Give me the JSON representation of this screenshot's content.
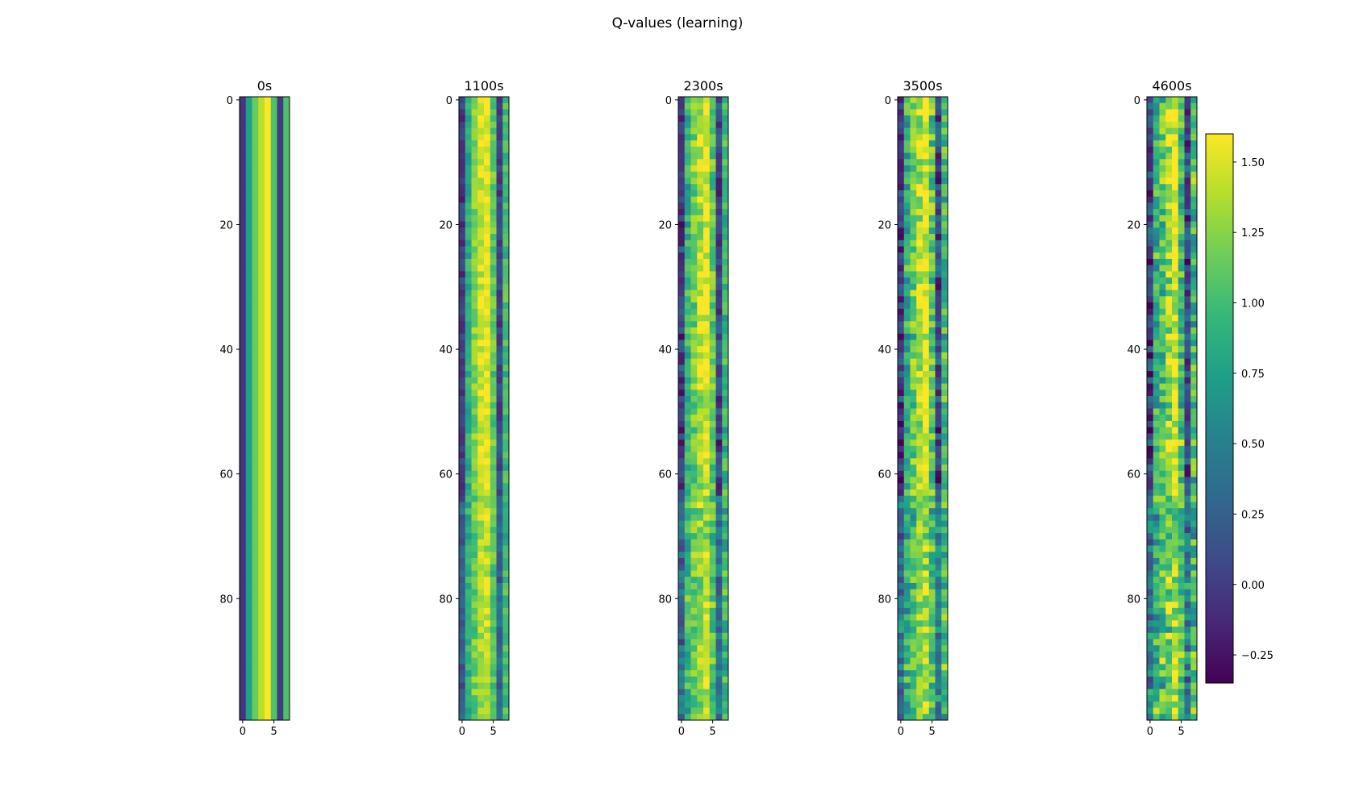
{
  "title": "Q-values (learning)",
  "chart_data": {
    "type": "heatmap",
    "title": "Q-values (learning)",
    "colormap": "viridis",
    "rows": 100,
    "cols": 8,
    "x_ticks": [
      0,
      5
    ],
    "y_ticks": [
      0,
      20,
      40,
      60,
      80
    ],
    "colorbar": {
      "vmin": -0.35,
      "vmax": 1.6,
      "ticks": [
        -0.25,
        0.0,
        0.25,
        0.5,
        0.75,
        1.0,
        1.25,
        1.5
      ],
      "tick_labels": [
        "−0.25",
        "0.00",
        "0.25",
        "0.50",
        "0.75",
        "1.00",
        "1.25",
        "1.50"
      ]
    },
    "panels": [
      {
        "label": "0s",
        "noise": 0.0,
        "lower_mix": 0.0,
        "column_values": [
          -0.05,
          0.75,
          1.15,
          1.4,
          1.6,
          1.05,
          0.0,
          1.05
        ]
      },
      {
        "label": "1100s",
        "noise": 0.08,
        "lower_mix": 0.45,
        "column_values": [
          -0.02,
          0.85,
          1.2,
          1.45,
          1.55,
          1.1,
          0.05,
          1.0
        ]
      },
      {
        "label": "2300s",
        "noise": 0.12,
        "lower_mix": 0.6,
        "column_values": [
          0.0,
          0.9,
          1.15,
          1.4,
          1.55,
          1.1,
          0.05,
          0.95
        ]
      },
      {
        "label": "3500s",
        "noise": 0.15,
        "lower_mix": 0.75,
        "column_values": [
          0.0,
          0.85,
          1.1,
          1.35,
          1.55,
          1.05,
          0.05,
          0.95
        ]
      },
      {
        "label": "4600s",
        "noise": 0.18,
        "lower_mix": 0.85,
        "column_values": [
          0.0,
          0.85,
          1.05,
          1.35,
          1.55,
          1.05,
          0.05,
          0.95
        ]
      }
    ]
  }
}
